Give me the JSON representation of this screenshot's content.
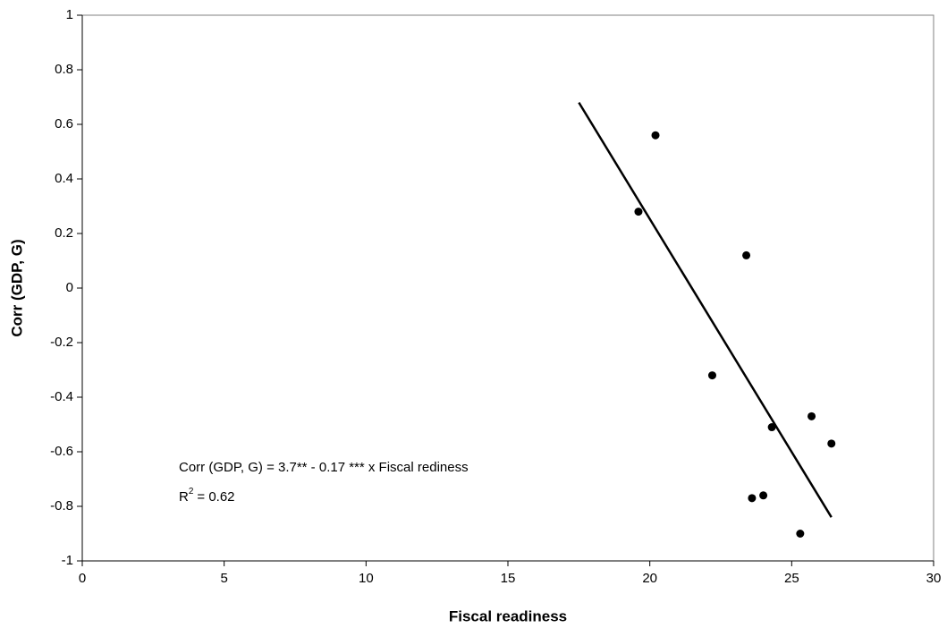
{
  "chart_data": {
    "type": "scatter",
    "x_label": "Fiscal readiness",
    "y_label": "Corr (GDP, G)",
    "series": [
      {
        "color": "#000000",
        "x": [
          19.6,
          20.2,
          23.4,
          22.2,
          24.3,
          25.7,
          26.4,
          23.6,
          24.0,
          25.3
        ],
        "values": [
          0.28,
          0.56,
          0.12,
          -0.32,
          -0.51,
          -0.47,
          -0.57,
          -0.77,
          -0.76,
          -0.9
        ]
      }
    ],
    "trendline": {
      "color": "#000000",
      "x": [
        17.5,
        26.4
      ],
      "values": [
        0.68,
        -0.84
      ]
    },
    "annotation": "Corr (GDP, G) = 3.7** - 0.17 *** x Fiscal rediness",
    "r2_annotation": {
      "base": "R",
      "sup": "2",
      "text": "= 0.62"
    },
    "xlim": [
      0,
      30
    ],
    "xticks": [
      0,
      5,
      10,
      15,
      20,
      25,
      30
    ],
    "ylim": [
      -1,
      1
    ],
    "yticks": [
      -1,
      -0.8,
      -0.6,
      -0.4,
      -0.2,
      0,
      0.2,
      0.4,
      0.6,
      0.8,
      1
    ],
    "grid": false
  }
}
